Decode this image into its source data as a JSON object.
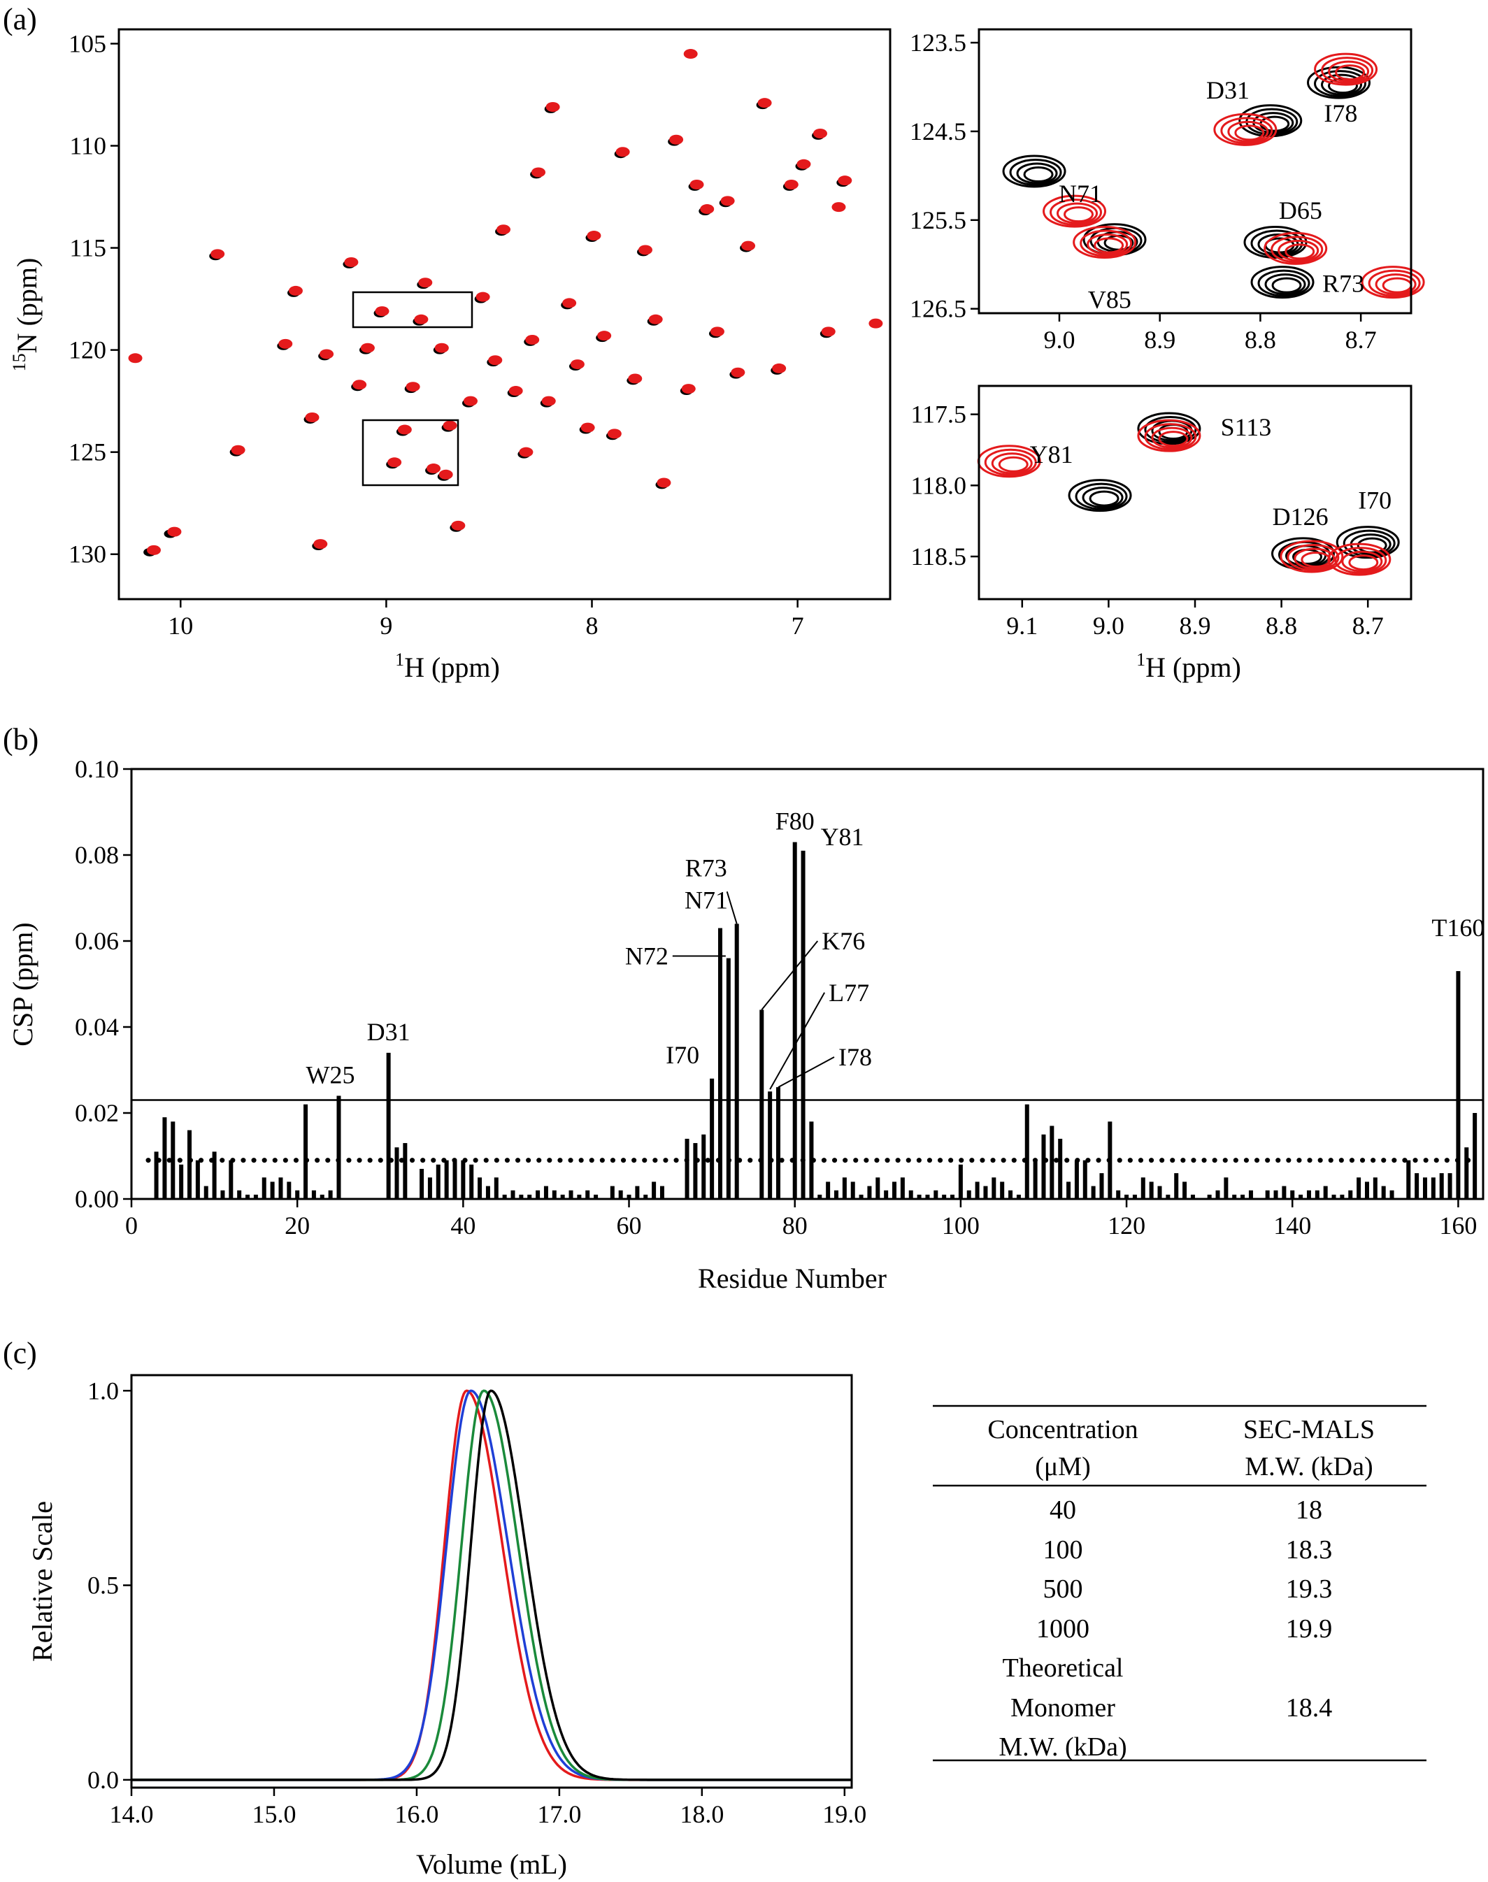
{
  "panels": {
    "a": "(a)",
    "b": "(b)",
    "c": "(c)"
  },
  "colors": {
    "free": "#000000",
    "bound": "#e41a1c",
    "sec": [
      "#e41a1c",
      "#1f3fd6",
      "#1a8a3a",
      "#000000"
    ]
  },
  "chart_data": [
    {
      "id": "hsqc-full",
      "type": "scatter",
      "xlabel_sup": "1",
      "xlabel_text": "H  (ppm)",
      "ylabel_sup": "15",
      "ylabel_text": "N  (ppm)",
      "xlim": [
        10.3,
        6.55
      ],
      "ylim": [
        132.2,
        104.3
      ],
      "x_reversed": true,
      "y_reversed": true,
      "xticks": [
        "10",
        "9",
        "8",
        "7"
      ],
      "yticks": [
        "105",
        "110",
        "115",
        "120",
        "125",
        "130"
      ],
      "series": [
        {
          "color": "#000000",
          "points": [
            [
              10.15,
              129.9
            ],
            [
              10.05,
              129.0
            ],
            [
              9.83,
              115.4
            ],
            [
              9.73,
              125.0
            ],
            [
              9.5,
              119.8
            ],
            [
              9.45,
              117.2
            ],
            [
              9.37,
              123.4
            ],
            [
              9.33,
              129.6
            ],
            [
              9.3,
              120.3
            ],
            [
              9.18,
              115.8
            ],
            [
              9.14,
              121.8
            ],
            [
              9.1,
              120.0
            ],
            [
              9.03,
              118.2
            ],
            [
              8.97,
              125.6
            ],
            [
              8.92,
              124.0
            ],
            [
              8.88,
              121.9
            ],
            [
              8.84,
              118.6
            ],
            [
              8.82,
              116.8
            ],
            [
              8.78,
              125.9
            ],
            [
              8.74,
              120.0
            ],
            [
              8.72,
              126.2
            ],
            [
              8.7,
              123.8
            ],
            [
              8.66,
              128.7
            ],
            [
              8.6,
              122.6
            ],
            [
              8.54,
              117.5
            ],
            [
              8.48,
              120.6
            ],
            [
              8.44,
              114.2
            ],
            [
              8.38,
              122.1
            ],
            [
              8.33,
              125.1
            ],
            [
              8.3,
              119.6
            ],
            [
              8.27,
              111.4
            ],
            [
              8.22,
              122.6
            ],
            [
              8.2,
              108.2
            ],
            [
              8.12,
              117.8
            ],
            [
              8.08,
              120.8
            ],
            [
              8.03,
              123.9
            ],
            [
              8.0,
              114.5
            ],
            [
              7.95,
              119.4
            ],
            [
              7.9,
              124.2
            ],
            [
              7.86,
              110.4
            ],
            [
              7.8,
              121.5
            ],
            [
              7.75,
              115.2
            ],
            [
              7.7,
              118.6
            ],
            [
              7.66,
              126.6
            ],
            [
              7.6,
              109.8
            ],
            [
              7.54,
              122.0
            ],
            [
              7.5,
              112.0
            ],
            [
              7.45,
              113.2
            ],
            [
              7.4,
              119.2
            ],
            [
              7.35,
              112.8
            ],
            [
              7.3,
              121.2
            ],
            [
              7.25,
              115.0
            ],
            [
              7.17,
              108.0
            ],
            [
              7.1,
              121.0
            ],
            [
              7.04,
              112.0
            ],
            [
              6.98,
              111.0
            ],
            [
              6.9,
              109.5
            ],
            [
              6.86,
              119.2
            ],
            [
              6.78,
              111.8
            ]
          ]
        },
        {
          "color": "#e41a1c",
          "points": [
            [
              10.22,
              120.4
            ],
            [
              10.13,
              129.8
            ],
            [
              10.03,
              128.9
            ],
            [
              9.82,
              115.3
            ],
            [
              9.72,
              124.9
            ],
            [
              9.49,
              119.7
            ],
            [
              9.44,
              117.1
            ],
            [
              9.36,
              123.3
            ],
            [
              9.32,
              129.5
            ],
            [
              9.29,
              120.2
            ],
            [
              9.17,
              115.7
            ],
            [
              9.13,
              121.7
            ],
            [
              9.09,
              119.9
            ],
            [
              9.02,
              118.1
            ],
            [
              8.96,
              125.5
            ],
            [
              8.91,
              123.9
            ],
            [
              8.87,
              121.8
            ],
            [
              8.83,
              118.5
            ],
            [
              8.81,
              116.7
            ],
            [
              8.77,
              125.8
            ],
            [
              8.73,
              119.9
            ],
            [
              8.71,
              126.1
            ],
            [
              8.69,
              123.7
            ],
            [
              8.65,
              128.6
            ],
            [
              8.59,
              122.5
            ],
            [
              8.53,
              117.4
            ],
            [
              8.47,
              120.5
            ],
            [
              8.43,
              114.1
            ],
            [
              8.37,
              122.0
            ],
            [
              8.32,
              125.0
            ],
            [
              8.29,
              119.5
            ],
            [
              8.26,
              111.3
            ],
            [
              8.21,
              122.5
            ],
            [
              8.19,
              108.1
            ],
            [
              8.11,
              117.7
            ],
            [
              8.07,
              120.7
            ],
            [
              8.02,
              123.8
            ],
            [
              7.99,
              114.4
            ],
            [
              7.94,
              119.3
            ],
            [
              7.89,
              124.1
            ],
            [
              7.85,
              110.3
            ],
            [
              7.79,
              121.4
            ],
            [
              7.74,
              115.1
            ],
            [
              7.69,
              118.5
            ],
            [
              7.65,
              126.5
            ],
            [
              7.59,
              109.7
            ],
            [
              7.53,
              121.9
            ],
            [
              7.52,
              105.5
            ],
            [
              7.49,
              111.9
            ],
            [
              7.44,
              113.1
            ],
            [
              7.39,
              119.1
            ],
            [
              7.34,
              112.7
            ],
            [
              7.29,
              121.1
            ],
            [
              7.24,
              114.9
            ],
            [
              7.16,
              107.9
            ],
            [
              7.09,
              120.9
            ],
            [
              7.03,
              111.9
            ],
            [
              6.97,
              110.9
            ],
            [
              6.89,
              109.4
            ],
            [
              6.85,
              119.1
            ],
            [
              6.77,
              111.7
            ],
            [
              6.62,
              118.7
            ],
            [
              6.8,
              113.0
            ]
          ]
        }
      ]
    },
    {
      "id": "hsqc-zoom-1",
      "type": "scatter",
      "xlim": [
        9.08,
        8.65
      ],
      "ylim": [
        126.55,
        123.35
      ],
      "x_reversed": true,
      "y_reversed": true,
      "xticks": [
        "9.0",
        "8.9",
        "8.8",
        "8.7"
      ],
      "yticks": [
        "123.5",
        "124.5",
        "125.5",
        "126.5"
      ],
      "peaks": [
        {
          "label": "I78",
          "x": 8.72,
          "y": 123.9,
          "black": [
            8.722,
            123.95
          ],
          "red": [
            8.715,
            123.8
          ]
        },
        {
          "label": "D31",
          "x": 8.81,
          "y": 124.4,
          "black": [
            8.79,
            124.38
          ],
          "red": [
            8.815,
            124.48
          ]
        },
        {
          "label": "N71",
          "x": 9.0,
          "y": 124.95,
          "black": [
            9.025,
            124.95
          ],
          "red": [
            8.985,
            125.4
          ]
        },
        {
          "label": "V85",
          "x": 8.95,
          "y": 125.75,
          "black": [
            8.945,
            125.72
          ],
          "red": [
            8.955,
            125.75
          ]
        },
        {
          "label": "D65",
          "x": 8.76,
          "y": 125.8,
          "black": [
            8.785,
            125.75
          ],
          "red": [
            8.765,
            125.82
          ]
        },
        {
          "label": "R73",
          "x": 8.78,
          "y": 126.15,
          "black": [
            8.778,
            126.2
          ],
          "red": [
            8.668,
            126.2
          ]
        }
      ]
    },
    {
      "id": "hsqc-zoom-2",
      "type": "scatter",
      "xlim": [
        9.15,
        8.65
      ],
      "ylim": [
        118.8,
        117.3
      ],
      "x_reversed": true,
      "y_reversed": true,
      "xlabel_sup": "1",
      "xlabel_text": "H  (ppm)",
      "xticks": [
        "9.1",
        "9.0",
        "8.9",
        "8.8",
        "8.7"
      ],
      "yticks": [
        "117.5",
        "118.0",
        "118.5"
      ],
      "peaks": [
        {
          "label": "S113",
          "x": 8.93,
          "y": 117.6,
          "black": [
            8.93,
            117.6
          ],
          "red": [
            8.93,
            117.65
          ]
        },
        {
          "label": "Y81",
          "x": 9.05,
          "y": 117.85,
          "black": [
            9.01,
            118.07
          ],
          "red": [
            9.115,
            117.83
          ]
        },
        {
          "label": "D126",
          "x": 8.77,
          "y": 118.5,
          "black": [
            8.775,
            118.48
          ],
          "red": [
            8.765,
            118.5
          ]
        },
        {
          "label": "I70",
          "x": 8.7,
          "y": 118.4,
          "black": [
            8.7,
            118.4
          ],
          "red": [
            8.71,
            118.52
          ]
        }
      ]
    },
    {
      "id": "csp",
      "type": "bar",
      "xlabel": "Residue Number",
      "ylabel": "CSP (ppm)",
      "xlim": [
        0,
        163
      ],
      "ylim": [
        0,
        0.1
      ],
      "xticks": [
        "0",
        "20",
        "40",
        "60",
        "80",
        "100",
        "120",
        "140",
        "160"
      ],
      "yticks": [
        "0.00",
        "0.02",
        "0.04",
        "0.06",
        "0.08",
        "0.10"
      ],
      "threshold_solid": 0.023,
      "threshold_dotted": 0.009,
      "x": [
        3,
        4,
        5,
        6,
        7,
        8,
        9,
        10,
        11,
        12,
        13,
        14,
        15,
        16,
        17,
        18,
        19,
        20,
        21,
        22,
        23,
        24,
        25,
        31,
        32,
        33,
        35,
        36,
        37,
        38,
        39,
        40,
        41,
        42,
        43,
        44,
        45,
        46,
        47,
        48,
        49,
        50,
        51,
        52,
        53,
        54,
        55,
        56,
        58,
        59,
        60,
        61,
        62,
        63,
        64,
        67,
        68,
        69,
        70,
        71,
        72,
        73,
        76,
        77,
        78,
        80,
        81,
        82,
        83,
        84,
        85,
        86,
        87,
        88,
        89,
        90,
        91,
        92,
        93,
        94,
        95,
        96,
        97,
        98,
        99,
        100,
        101,
        102,
        103,
        104,
        105,
        106,
        107,
        108,
        109,
        110,
        111,
        112,
        113,
        114,
        115,
        116,
        117,
        118,
        119,
        120,
        121,
        122,
        123,
        124,
        125,
        126,
        127,
        128,
        130,
        131,
        132,
        133,
        134,
        135,
        137,
        138,
        139,
        140,
        141,
        142,
        143,
        144,
        145,
        146,
        147,
        148,
        149,
        150,
        151,
        152,
        154,
        155,
        156,
        157,
        158,
        159,
        160,
        161,
        162
      ],
      "values": [
        0.011,
        0.019,
        0.018,
        0.008,
        0.016,
        0.009,
        0.003,
        0.011,
        0.002,
        0.009,
        0.002,
        0.001,
        0.001,
        0.005,
        0.004,
        0.005,
        0.004,
        0.002,
        0.022,
        0.002,
        0.001,
        0.002,
        0.024,
        0.034,
        0.012,
        0.013,
        0.007,
        0.005,
        0.008,
        0.009,
        0.009,
        0.009,
        0.008,
        0.005,
        0.003,
        0.005,
        0.001,
        0.002,
        0.001,
        0.001,
        0.002,
        0.003,
        0.002,
        0.001,
        0.002,
        0.001,
        0.002,
        0.001,
        0.003,
        0.002,
        0.001,
        0.003,
        0.001,
        0.004,
        0.003,
        0.014,
        0.013,
        0.015,
        0.028,
        0.063,
        0.056,
        0.064,
        0.044,
        0.025,
        0.026,
        0.083,
        0.081,
        0.018,
        0.001,
        0.004,
        0.002,
        0.005,
        0.004,
        0.001,
        0.003,
        0.005,
        0.002,
        0.004,
        0.005,
        0.002,
        0.001,
        0.001,
        0.002,
        0.001,
        0.001,
        0.008,
        0.002,
        0.004,
        0.003,
        0.005,
        0.004,
        0.002,
        0.001,
        0.022,
        0.009,
        0.015,
        0.017,
        0.014,
        0.004,
        0.009,
        0.009,
        0.003,
        0.006,
        0.018,
        0.002,
        0.001,
        0.001,
        0.005,
        0.004,
        0.003,
        0.001,
        0.006,
        0.004,
        0.001,
        0.001,
        0.002,
        0.005,
        0.001,
        0.001,
        0.002,
        0.002,
        0.002,
        0.003,
        0.002,
        0.001,
        0.002,
        0.002,
        0.003,
        0.001,
        0.001,
        0.002,
        0.005,
        0.004,
        0.005,
        0.003,
        0.002,
        0.009,
        0.006,
        0.005,
        0.005,
        0.006,
        0.006,
        0.053,
        0.012,
        0.02
      ],
      "labels": [
        {
          "text": "W25",
          "residue": 25
        },
        {
          "text": "D31",
          "residue": 31
        },
        {
          "text": "I70",
          "residue": 70
        },
        {
          "text": "N71",
          "residue": 71
        },
        {
          "text": "N72",
          "residue": 72
        },
        {
          "text": "R73",
          "residue": 73
        },
        {
          "text": "K76",
          "residue": 76
        },
        {
          "text": "L77",
          "residue": 77
        },
        {
          "text": "I78",
          "residue": 78
        },
        {
          "text": "F80",
          "residue": 80
        },
        {
          "text": "Y81",
          "residue": 81
        },
        {
          "text": "T160",
          "residue": 160
        }
      ]
    },
    {
      "id": "sec",
      "type": "line",
      "xlabel": "Volume  (mL)",
      "ylabel": "Relative Scale",
      "xlim": [
        14.0,
        19.05
      ],
      "ylim": [
        -0.02,
        1.04
      ],
      "xticks": [
        "14.0",
        "15.0",
        "16.0",
        "17.0",
        "18.0",
        "19.0"
      ],
      "yticks": [
        "0.0",
        "0.5",
        "1.0"
      ],
      "series": [
        {
          "color": "#e41a1c",
          "peak": 16.35,
          "sigma_left": 0.155,
          "sigma_right": 0.25
        },
        {
          "color": "#1f3fd6",
          "peak": 16.38,
          "sigma_left": 0.17,
          "sigma_right": 0.26
        },
        {
          "color": "#1a8a3a",
          "peak": 16.47,
          "sigma_left": 0.155,
          "sigma_right": 0.24
        },
        {
          "color": "#000000",
          "peak": 16.52,
          "sigma_left": 0.14,
          "sigma_right": 0.24
        }
      ]
    }
  ],
  "table": {
    "header1": [
      "Concentration",
      "SEC-MALS"
    ],
    "header2": [
      "(μM)",
      "M.W. (kDa)"
    ],
    "rows": [
      [
        "40",
        "18"
      ],
      [
        "100",
        "18.3"
      ],
      [
        "500",
        "19.3"
      ],
      [
        "1000",
        "19.9"
      ]
    ],
    "theoretical": {
      "lines": [
        "Theoretical",
        "Monomer",
        "M.W. (kDa)"
      ],
      "value": "18.4"
    }
  }
}
